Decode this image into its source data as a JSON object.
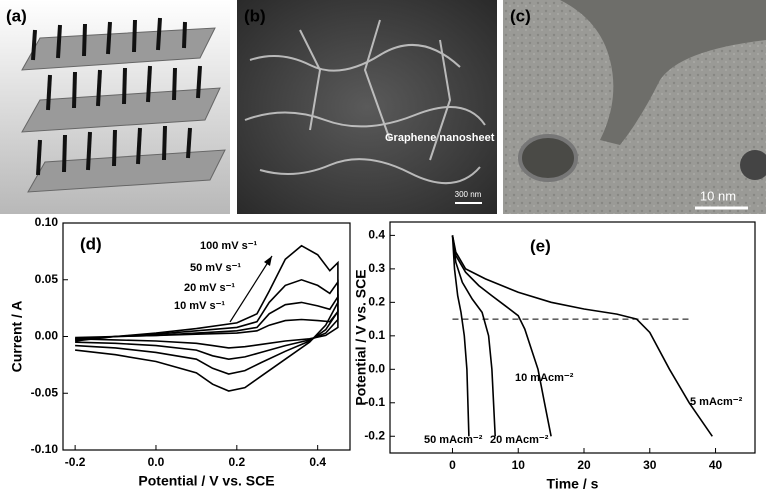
{
  "panels": {
    "a": {
      "label": "(a)"
    },
    "b": {
      "label": "(b)",
      "annotation": "Graphene nanosheet",
      "scale_bar": "300 nm"
    },
    "c": {
      "label": "(c)",
      "scale_bar": "10 nm"
    }
  },
  "chart_data": [
    {
      "type": "line",
      "panel_label": "(d)",
      "x_label": "Potential / V vs. SCE",
      "y_label": "Current / A",
      "xlim": [
        -0.23,
        0.48
      ],
      "ylim": [
        -0.1,
        0.1
      ],
      "xticks": [
        {
          "value": -0.2,
          "label": "-0.2"
        },
        {
          "value": 0,
          "label": "0.0"
        },
        {
          "value": 0.2,
          "label": "0.2"
        },
        {
          "value": 0.4,
          "label": "0.4"
        }
      ],
      "yticks": [
        {
          "value": 0.1,
          "label": "0.10"
        },
        {
          "value": 0.05,
          "label": "0.05"
        },
        {
          "value": 0,
          "label": "0.00"
        },
        {
          "value": -0.05,
          "label": "-0.05"
        },
        {
          "value": -0.1,
          "label": "-0.10"
        }
      ],
      "x": [
        -0.2,
        -0.1,
        0.0,
        0.1,
        0.2,
        0.25,
        0.28,
        0.32,
        0.36,
        0.4,
        0.43,
        0.45,
        0.45,
        0.42,
        0.38,
        0.32,
        0.26,
        0.22,
        0.18,
        0.14,
        0.1,
        0.0,
        -0.1,
        -0.2
      ],
      "series": [
        {
          "name": "100  mV s⁻¹",
          "color": "#000000",
          "values": [
            -0.004,
            0.0,
            0.003,
            0.007,
            0.012,
            0.02,
            0.04,
            0.068,
            0.08,
            0.072,
            0.058,
            0.065,
            0.03,
            0.01,
            -0.005,
            -0.02,
            -0.035,
            -0.045,
            -0.048,
            -0.042,
            -0.032,
            -0.022,
            -0.016,
            -0.012
          ]
        },
        {
          "name": "50  mV s⁻¹",
          "color": "#000000",
          "values": [
            -0.003,
            0.0,
            0.002,
            0.005,
            0.008,
            0.013,
            0.03,
            0.045,
            0.05,
            0.045,
            0.038,
            0.048,
            0.022,
            0.006,
            -0.004,
            -0.013,
            -0.023,
            -0.03,
            -0.033,
            -0.028,
            -0.02,
            -0.014,
            -0.01,
            -0.008
          ]
        },
        {
          "name": "20  mV s⁻¹",
          "color": "#000000",
          "values": [
            -0.002,
            0.0,
            0.001,
            0.003,
            0.005,
            0.008,
            0.02,
            0.028,
            0.03,
            0.027,
            0.024,
            0.035,
            0.015,
            0.003,
            -0.003,
            -0.008,
            -0.014,
            -0.018,
            -0.02,
            -0.017,
            -0.012,
            -0.008,
            -0.006,
            -0.005
          ]
        },
        {
          "name": "10 mV s⁻¹",
          "color": "#000000",
          "values": [
            -0.001,
            0.0,
            0.001,
            0.002,
            0.003,
            0.005,
            0.01,
            0.014,
            0.015,
            0.014,
            0.013,
            0.022,
            0.008,
            0.001,
            -0.002,
            -0.004,
            -0.007,
            -0.009,
            -0.01,
            -0.008,
            -0.006,
            -0.004,
            -0.003,
            -0.002
          ]
        }
      ]
    },
    {
      "type": "line",
      "panel_label": "(e)",
      "x_label": "Time / s",
      "y_label": "Potential / V vs. SCE",
      "xlim": [
        -9.5,
        46
      ],
      "ylim": [
        -0.25,
        0.44
      ],
      "xticks": [
        0,
        10,
        20,
        30,
        40
      ],
      "yticks": [
        0.4,
        0.3,
        0.2,
        0.1,
        {
          "value": 0,
          "label": "0.0"
        },
        -0.1,
        -0.2
      ],
      "reference_line": {
        "y": 0.15,
        "x": [
          0,
          36
        ]
      },
      "series": [
        {
          "name": "5 mAcm⁻²",
          "color": "#000000",
          "x": [
            0,
            0.5,
            2,
            5,
            10,
            15,
            20,
            25,
            28,
            30,
            33,
            36,
            39.5
          ],
          "values": [
            0.4,
            0.35,
            0.3,
            0.27,
            0.23,
            0.2,
            0.18,
            0.165,
            0.15,
            0.11,
            0.0,
            -0.1,
            -0.2
          ]
        },
        {
          "name": "10 mAcm⁻²",
          "color": "#000000",
          "x": [
            0,
            0.5,
            2,
            4,
            6,
            8,
            10,
            11,
            12,
            13,
            14,
            15
          ],
          "values": [
            0.4,
            0.34,
            0.29,
            0.25,
            0.22,
            0.19,
            0.16,
            0.12,
            0.06,
            0.0,
            -0.1,
            -0.2
          ]
        },
        {
          "name": "20 mAcm⁻²",
          "color": "#000000",
          "x": [
            0,
            0.5,
            1.5,
            3,
            4.5,
            5.5,
            6,
            6.5
          ],
          "values": [
            0.4,
            0.32,
            0.26,
            0.21,
            0.17,
            0.1,
            0.0,
            -0.2
          ]
        },
        {
          "name": "50 mAcm⁻²",
          "color": "#000000",
          "x": [
            0,
            0.3,
            0.8,
            1.3,
            1.8,
            2.2,
            2.5
          ],
          "values": [
            0.4,
            0.3,
            0.22,
            0.17,
            0.1,
            0.0,
            -0.2
          ]
        }
      ]
    }
  ]
}
